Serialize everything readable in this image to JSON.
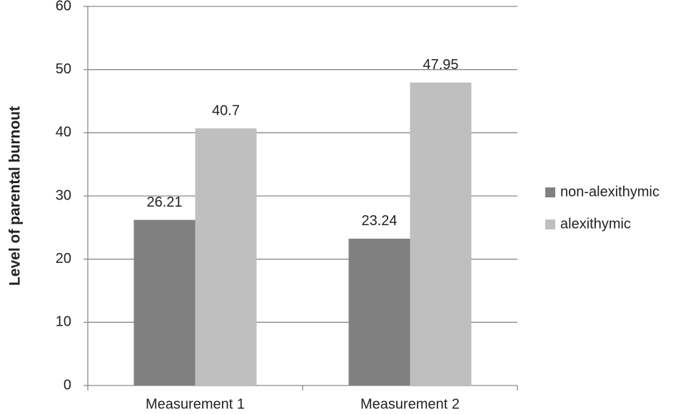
{
  "chart_data": {
    "type": "bar",
    "y_label": "Level of parental burnout",
    "categories": [
      "Measurement 1",
      "Measurement 2"
    ],
    "series": [
      {
        "name": "non-alexithymic",
        "color": "#808080",
        "values": [
          26.21,
          23.24
        ]
      },
      {
        "name": "alexithymic",
        "color": "#bfbfbf",
        "values": [
          40.7,
          47.95
        ]
      }
    ],
    "ylim": [
      0,
      60
    ],
    "yticks": [
      0,
      10,
      20,
      30,
      40,
      50,
      60
    ],
    "grid": true,
    "legend": "right"
  }
}
